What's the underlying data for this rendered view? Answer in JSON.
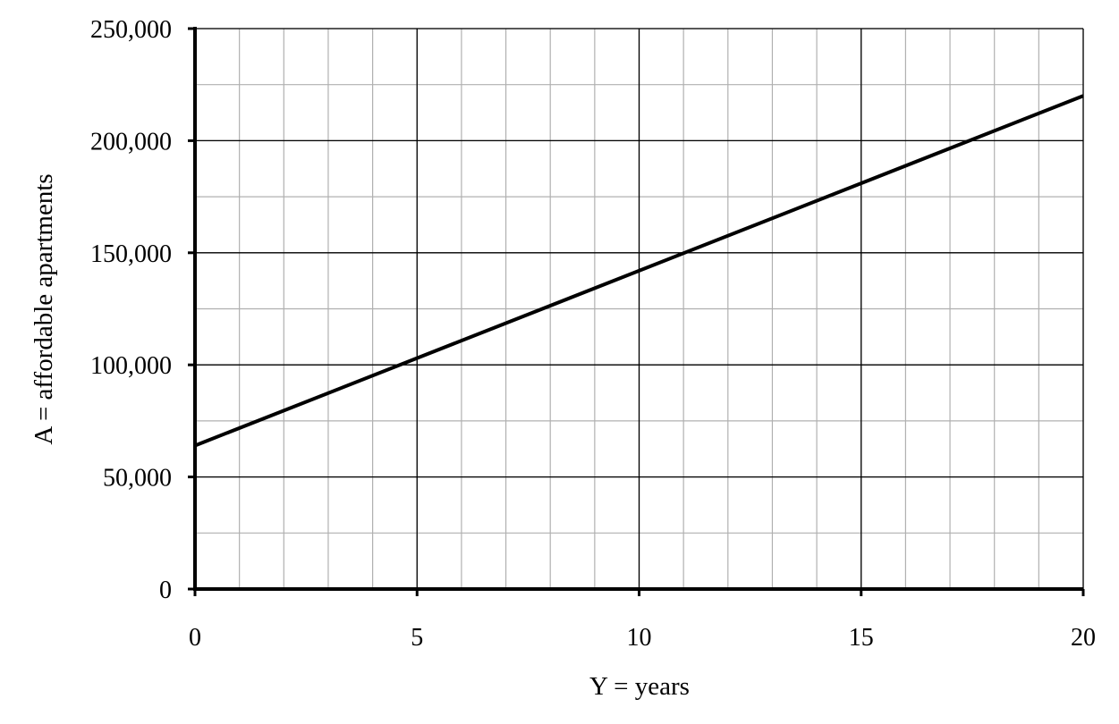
{
  "chart_data": {
    "type": "line",
    "xlabel": "Y = years",
    "ylabel": "A = affordable apartments",
    "xlim": [
      0,
      20
    ],
    "ylim": [
      0,
      250000
    ],
    "x_ticks": [
      0,
      5,
      10,
      15,
      20
    ],
    "x_tick_labels": [
      "0",
      "5",
      "10",
      "15",
      "20"
    ],
    "y_ticks": [
      0,
      50000,
      100000,
      150000,
      200000,
      250000
    ],
    "y_tick_labels": [
      "0",
      "50,000",
      "100,000",
      "150,000",
      "200,000",
      "250,000"
    ],
    "x_minor_step": 1,
    "y_minor_step": 25000,
    "grid": true,
    "series": [
      {
        "x": [
          0,
          20
        ],
        "values": [
          64000,
          220000
        ]
      }
    ],
    "colors": {
      "line": "#000000",
      "major_grid": "#000000",
      "minor_grid": "#b0b0b0"
    }
  }
}
